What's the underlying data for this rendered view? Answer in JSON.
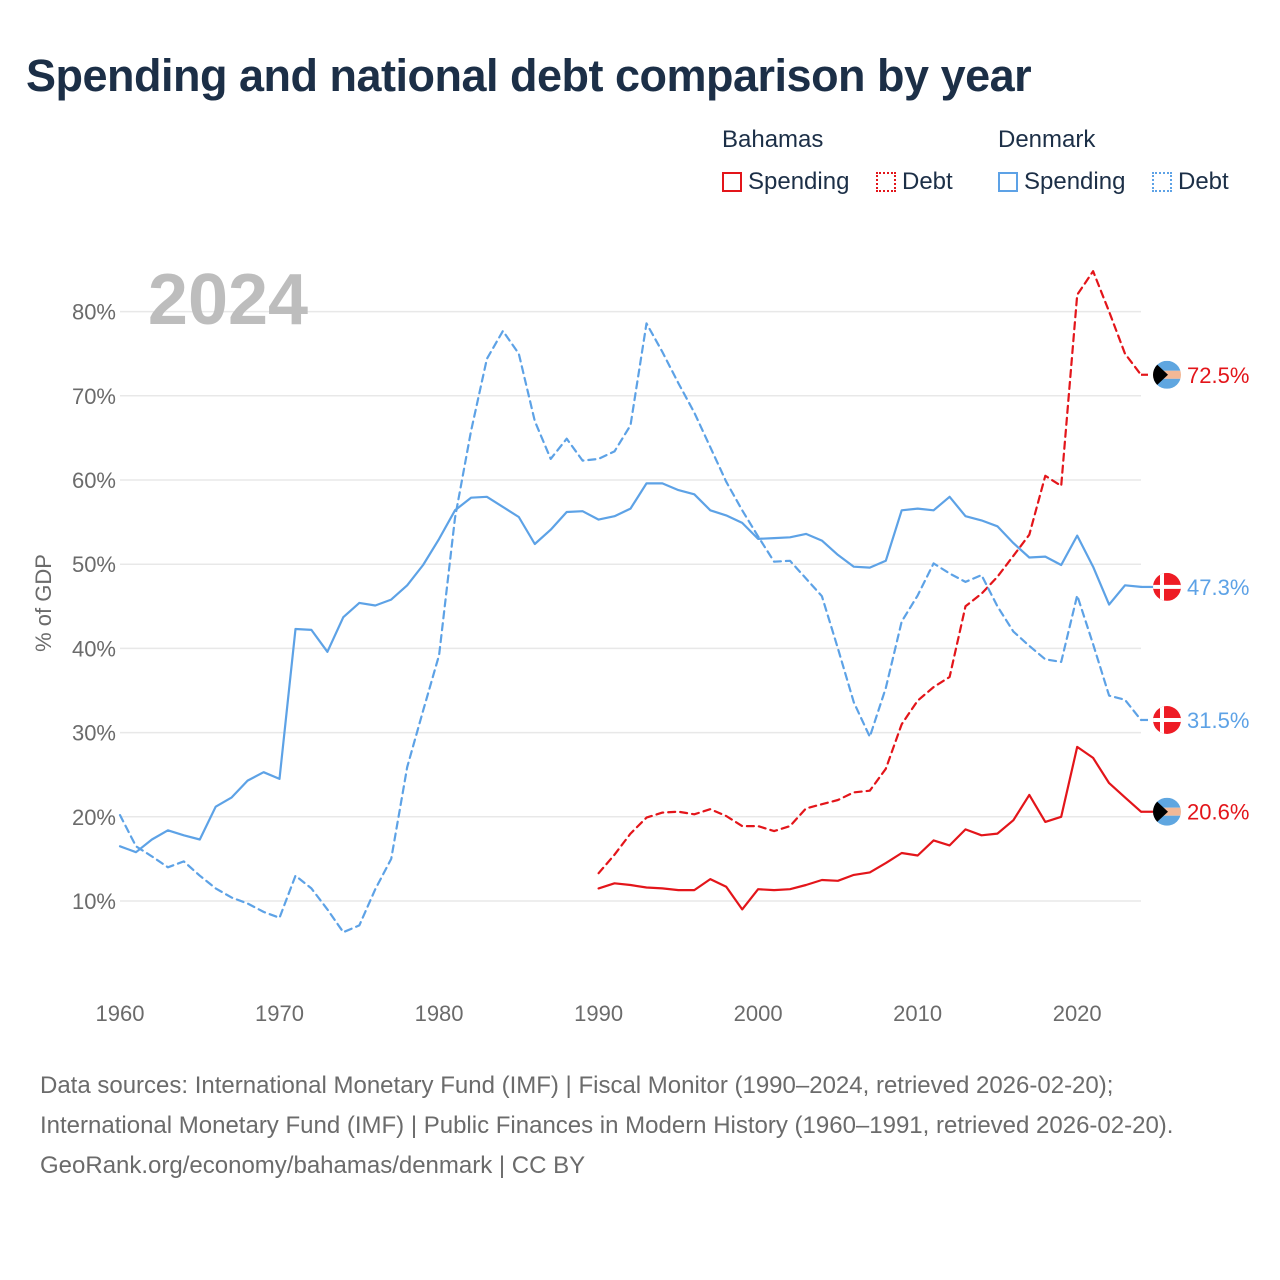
{
  "title": "Spending and national debt comparison by year",
  "legend": [
    {
      "country": "Bahamas",
      "items": [
        {
          "label": "Spending",
          "color": "#e3151a",
          "style": "solid"
        },
        {
          "label": "Debt",
          "color": "#e3151a",
          "style": "dotted"
        }
      ]
    },
    {
      "country": "Denmark",
      "items": [
        {
          "label": "Spending",
          "color": "#5da2e6",
          "style": "solid"
        },
        {
          "label": "Debt",
          "color": "#5da2e6",
          "style": "dotted"
        }
      ]
    }
  ],
  "chart_data": {
    "type": "line",
    "year_label": "2024",
    "ylabel": "% of GDP",
    "xlim": [
      1960,
      2024
    ],
    "ylim": [
      0,
      85
    ],
    "x_ticks": [
      "1960",
      "1970",
      "1980",
      "1990",
      "2000",
      "2010",
      "2020"
    ],
    "y_ticks": [
      "10%",
      "20%",
      "30%",
      "40%",
      "50%",
      "60%",
      "70%",
      "80%"
    ],
    "series": [
      {
        "name": "Bahamas Spending",
        "color": "#e3151a",
        "dashed": false,
        "end_label": "20.6%",
        "flag": "bahamas",
        "x": [
          1990,
          1991,
          1992,
          1993,
          1994,
          1995,
          1996,
          1997,
          1998,
          1999,
          2000,
          2001,
          2002,
          2003,
          2004,
          2005,
          2006,
          2007,
          2008,
          2009,
          2010,
          2011,
          2012,
          2013,
          2014,
          2015,
          2016,
          2017,
          2018,
          2019,
          2020,
          2021,
          2022,
          2023,
          2024
        ],
        "values": [
          11.5,
          12.1,
          11.9,
          11.6,
          11.5,
          11.3,
          11.3,
          12.6,
          11.7,
          9.0,
          11.4,
          11.3,
          11.4,
          11.9,
          12.5,
          12.4,
          13.1,
          13.4,
          14.5,
          15.7,
          15.4,
          17.2,
          16.6,
          18.5,
          17.8,
          18.0,
          19.6,
          22.6,
          19.4,
          20.0,
          28.3,
          27.0,
          24.0,
          22.3,
          20.6
        ]
      },
      {
        "name": "Bahamas Debt",
        "color": "#e3151a",
        "dashed": true,
        "end_label": "72.5%",
        "flag": "bahamas",
        "x": [
          1990,
          1991,
          1992,
          1993,
          1994,
          1995,
          1996,
          1997,
          1998,
          1999,
          2000,
          2001,
          2002,
          2003,
          2004,
          2005,
          2006,
          2007,
          2008,
          2009,
          2010,
          2011,
          2012,
          2013,
          2014,
          2015,
          2016,
          2017,
          2018,
          2019,
          2020,
          2021,
          2022,
          2023,
          2024
        ],
        "values": [
          13.3,
          15.5,
          18.0,
          19.9,
          20.5,
          20.6,
          20.3,
          20.9,
          20.1,
          18.9,
          18.9,
          18.3,
          18.9,
          21.0,
          21.5,
          22.0,
          22.9,
          23.1,
          25.7,
          31.0,
          33.8,
          35.4,
          36.6,
          45.0,
          46.5,
          48.5,
          51.0,
          53.5,
          60.5,
          59.3,
          82.0,
          84.8,
          80.0,
          75.0,
          72.5
        ]
      },
      {
        "name": "Denmark Spending",
        "color": "#5da2e6",
        "dashed": false,
        "end_label": "47.3%",
        "flag": "denmark",
        "x": [
          1960,
          1961,
          1962,
          1963,
          1964,
          1965,
          1966,
          1967,
          1968,
          1969,
          1970,
          1971,
          1972,
          1973,
          1974,
          1975,
          1976,
          1977,
          1978,
          1979,
          1980,
          1981,
          1982,
          1983,
          1984,
          1985,
          1986,
          1987,
          1988,
          1989,
          1990,
          1991,
          1992,
          1993,
          1994,
          1995,
          1996,
          1997,
          1998,
          1999,
          2000,
          2001,
          2002,
          2003,
          2004,
          2005,
          2006,
          2007,
          2008,
          2009,
          2010,
          2011,
          2012,
          2013,
          2014,
          2015,
          2016,
          2017,
          2018,
          2019,
          2020,
          2021,
          2022,
          2023,
          2024
        ],
        "values": [
          16.5,
          15.8,
          17.3,
          18.4,
          17.8,
          17.3,
          21.2,
          22.3,
          24.3,
          25.3,
          24.5,
          42.3,
          42.2,
          39.6,
          43.7,
          45.4,
          45.1,
          45.8,
          47.5,
          49.9,
          53.0,
          56.4,
          57.9,
          58.0,
          56.8,
          55.6,
          52.4,
          54.1,
          56.2,
          56.3,
          55.3,
          55.7,
          56.6,
          59.6,
          59.6,
          58.8,
          58.3,
          56.4,
          55.8,
          54.9,
          53.0,
          53.1,
          53.2,
          53.6,
          52.8,
          51.1,
          49.7,
          49.6,
          50.4,
          56.4,
          56.6,
          56.4,
          58.0,
          55.7,
          55.2,
          54.5,
          52.5,
          50.8,
          50.9,
          49.9,
          53.4,
          49.7,
          45.2,
          47.5,
          47.3
        ]
      },
      {
        "name": "Denmark Debt",
        "color": "#5da2e6",
        "dashed": true,
        "end_label": "31.5%",
        "flag": "denmark",
        "x": [
          1960,
          1961,
          1962,
          1963,
          1964,
          1965,
          1966,
          1967,
          1968,
          1969,
          1970,
          1971,
          1972,
          1973,
          1974,
          1975,
          1976,
          1977,
          1978,
          1979,
          1980,
          1981,
          1982,
          1983,
          1984,
          1985,
          1986,
          1987,
          1988,
          1989,
          1990,
          1991,
          1992,
          1993,
          1994,
          1995,
          1996,
          1997,
          1998,
          1999,
          2000,
          2001,
          2002,
          2003,
          2004,
          2005,
          2006,
          2007,
          2008,
          2009,
          2010,
          2011,
          2012,
          2013,
          2014,
          2015,
          2016,
          2017,
          2018,
          2019,
          2020,
          2021,
          2022,
          2023,
          2024
        ],
        "values": [
          20.2,
          16.5,
          15.3,
          14.0,
          14.7,
          13.0,
          11.5,
          10.4,
          9.7,
          8.7,
          8.0,
          13.0,
          11.5,
          9.0,
          6.3,
          7.1,
          11.4,
          15.0,
          25.9,
          32.6,
          39.2,
          55.5,
          65.8,
          74.4,
          77.7,
          75.0,
          67.0,
          62.5,
          64.9,
          62.3,
          62.5,
          63.4,
          66.5,
          78.6,
          75.2,
          71.5,
          68.0,
          63.9,
          59.8,
          56.4,
          53.3,
          50.3,
          50.4,
          48.3,
          46.2,
          40.0,
          33.6,
          29.5,
          35.3,
          43.2,
          46.3,
          50.1,
          48.9,
          47.9,
          48.7,
          45.0,
          42.0,
          40.3,
          38.7,
          38.4,
          46.3,
          40.5,
          34.4,
          33.9,
          31.5
        ]
      }
    ]
  },
  "footer": {
    "sources": "Data sources: International Monetary Fund (IMF) | Fiscal Monitor (1990–2024, retrieved 2026-02-20); International Monetary Fund (IMF) | Public Finances in Modern History (1960–1991, retrieved 2026-02-20).",
    "credit": "GeoRank.org/economy/bahamas/denmark | CC BY"
  }
}
